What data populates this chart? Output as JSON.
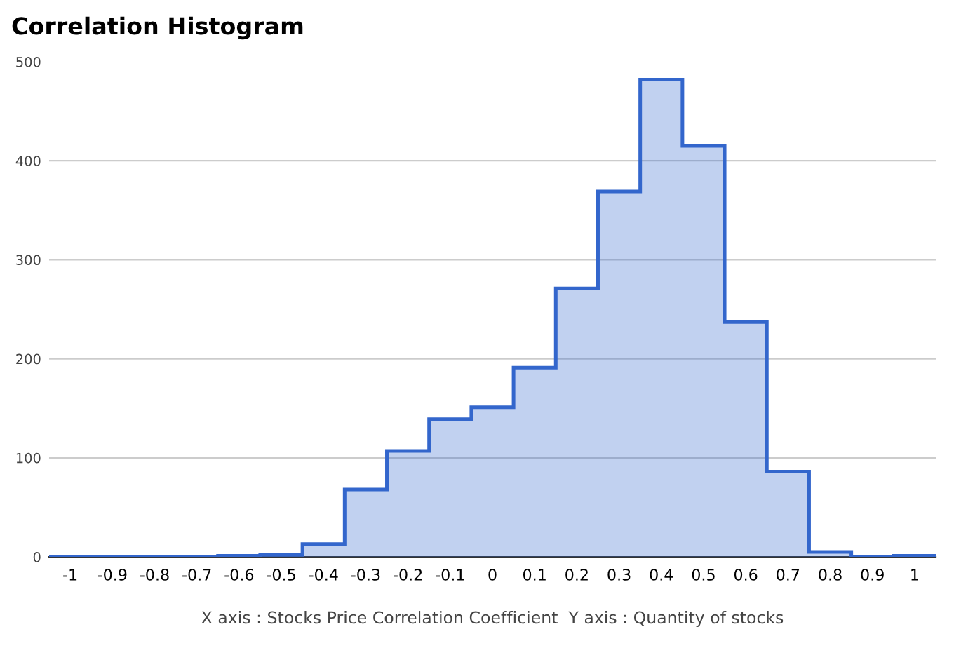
{
  "chart_data": {
    "type": "histogram",
    "title": "Correlation Histogram",
    "xlabel": "X axis : Stocks Price Correlation Coefficient  Y axis : Quantity of stocks",
    "bins": [
      -1.05,
      -0.95,
      -0.85,
      -0.75,
      -0.65,
      -0.55,
      -0.45,
      -0.35,
      -0.25,
      -0.15,
      -0.05,
      0.05,
      0.15,
      0.25,
      0.35,
      0.45,
      0.55,
      0.65,
      0.75,
      0.85,
      0.95,
      1.05
    ],
    "values": [
      0,
      0,
      0,
      0,
      1,
      2,
      13,
      68,
      107,
      139,
      151,
      191,
      271,
      369,
      482,
      415,
      237,
      86,
      5,
      0,
      1
    ],
    "color": "#3366cc",
    "xlim": [
      -1.05,
      1.05
    ],
    "xticks": [
      -1,
      -0.9,
      -0.8,
      -0.7,
      -0.6,
      -0.5,
      -0.4,
      -0.3,
      -0.2,
      -0.1,
      0,
      0.1,
      0.2,
      0.3,
      0.4,
      0.5,
      0.6,
      0.7,
      0.8,
      0.9,
      1
    ],
    "ylim": [
      0,
      500
    ],
    "yticks": [
      0,
      100,
      200,
      300,
      400,
      500
    ],
    "grid": "y"
  }
}
